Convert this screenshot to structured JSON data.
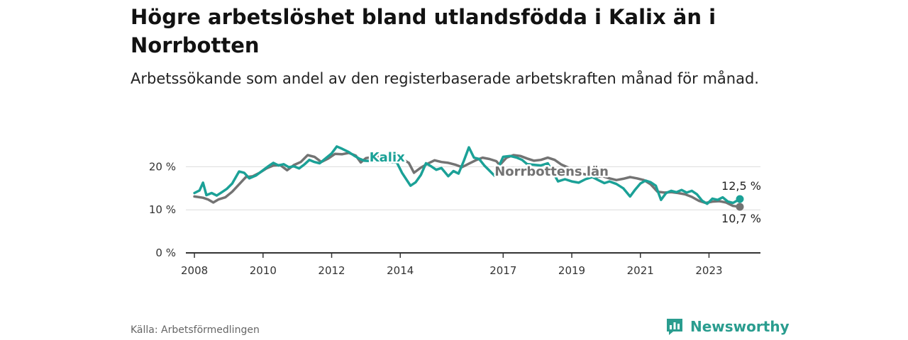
{
  "header": {
    "title": "Högre arbetslöshet bland utlandsfödda i Kalix än i Norrbotten",
    "subtitle": "Arbetssökande som andel av den registerbaserade arbetskraften månad för månad."
  },
  "footer": {
    "source": "Källa: Arbetsförmedlingen",
    "brand": "Newsworthy"
  },
  "colors": {
    "kalix": "#1ba197",
    "norrbotten": "#737373",
    "grid": "#dcdcdc",
    "axis": "#333333",
    "brand": "#2a9d8f"
  },
  "chart_data": {
    "type": "line",
    "title": "Högre arbetslöshet bland utlandsfödda i Kalix än i Norrbotten",
    "xlabel": "",
    "ylabel": "",
    "xlim": [
      2007.75,
      2024.5
    ],
    "ylim": [
      0,
      25
    ],
    "y_ticks": [
      {
        "value": 0,
        "label": "0 %"
      },
      {
        "value": 10,
        "label": "10 %"
      },
      {
        "value": 20,
        "label": "20 %"
      }
    ],
    "x_ticks": [
      {
        "value": 2008,
        "label": "2008"
      },
      {
        "value": 2010,
        "label": "2010"
      },
      {
        "value": 2012,
        "label": "2012"
      },
      {
        "value": 2014,
        "label": "2014"
      },
      {
        "value": 2017,
        "label": "2017"
      },
      {
        "value": 2019,
        "label": "2019"
      },
      {
        "value": 2021,
        "label": "2021"
      },
      {
        "value": 2023,
        "label": "2023"
      }
    ],
    "series": [
      {
        "name": "Norrbottens län",
        "label": "Norrbottens län",
        "color": "#737373",
        "end_label": "10,7 %",
        "points": [
          [
            2008.0,
            13.1
          ],
          [
            2008.25,
            12.8
          ],
          [
            2008.4,
            12.4
          ],
          [
            2008.55,
            11.7
          ],
          [
            2008.7,
            12.4
          ],
          [
            2008.9,
            12.9
          ],
          [
            2009.1,
            14.2
          ],
          [
            2009.3,
            15.9
          ],
          [
            2009.5,
            17.6
          ],
          [
            2009.7,
            17.8
          ],
          [
            2009.9,
            18.6
          ],
          [
            2010.1,
            19.6
          ],
          [
            2010.3,
            20.3
          ],
          [
            2010.5,
            20.4
          ],
          [
            2010.7,
            19.2
          ],
          [
            2010.9,
            20.4
          ],
          [
            2011.1,
            21.1
          ],
          [
            2011.3,
            22.7
          ],
          [
            2011.5,
            22.3
          ],
          [
            2011.7,
            21.1
          ],
          [
            2011.9,
            21.9
          ],
          [
            2012.1,
            23.0
          ],
          [
            2012.3,
            22.9
          ],
          [
            2012.5,
            23.2
          ],
          [
            2012.7,
            22.6
          ],
          [
            2012.85,
            21.0
          ],
          [
            2013.0,
            22.0
          ],
          [
            2013.9,
            23.1
          ],
          [
            2014.1,
            21.6
          ],
          [
            2014.25,
            20.9
          ],
          [
            2014.4,
            18.6
          ],
          [
            2014.6,
            19.8
          ],
          [
            2014.8,
            20.7
          ],
          [
            2015.0,
            21.5
          ],
          [
            2015.2,
            21.1
          ],
          [
            2015.4,
            20.9
          ],
          [
            2015.6,
            20.5
          ],
          [
            2015.8,
            19.9
          ],
          [
            2016.0,
            20.7
          ],
          [
            2016.2,
            21.5
          ],
          [
            2016.4,
            22.1
          ],
          [
            2016.6,
            21.8
          ],
          [
            2016.8,
            21.3
          ],
          [
            2016.9,
            20.4
          ],
          [
            2017.1,
            22.1
          ],
          [
            2017.3,
            22.7
          ],
          [
            2017.5,
            22.5
          ],
          [
            2017.7,
            21.9
          ],
          [
            2017.9,
            21.4
          ],
          [
            2018.1,
            21.6
          ],
          [
            2018.3,
            22.1
          ],
          [
            2018.5,
            21.6
          ],
          [
            2018.7,
            20.5
          ],
          [
            2018.9,
            19.8
          ],
          [
            2019.1,
            18.9
          ],
          [
            2019.3,
            18.4
          ],
          [
            2019.5,
            18.0
          ],
          [
            2019.7,
            17.6
          ],
          [
            2019.9,
            17.8
          ],
          [
            2020.1,
            17.3
          ],
          [
            2020.3,
            16.9
          ],
          [
            2020.5,
            17.2
          ],
          [
            2020.7,
            17.6
          ],
          [
            2020.9,
            17.3
          ],
          [
            2021.1,
            16.9
          ],
          [
            2021.3,
            15.9
          ],
          [
            2021.5,
            14.2
          ],
          [
            2021.7,
            14.0
          ],
          [
            2021.9,
            14.1
          ],
          [
            2022.1,
            13.9
          ],
          [
            2022.3,
            13.6
          ],
          [
            2022.5,
            13.0
          ],
          [
            2022.7,
            12.1
          ],
          [
            2022.9,
            11.6
          ],
          [
            2023.1,
            11.9
          ],
          [
            2023.3,
            12.0
          ],
          [
            2023.5,
            11.7
          ],
          [
            2023.7,
            10.9
          ],
          [
            2023.9,
            10.7
          ]
        ]
      },
      {
        "name": "Kalix",
        "label": "Kalix",
        "color": "#1ba197",
        "end_label": "12,5 %",
        "points": [
          [
            2008.0,
            13.9
          ],
          [
            2008.15,
            14.5
          ],
          [
            2008.25,
            16.3
          ],
          [
            2008.35,
            13.4
          ],
          [
            2008.5,
            13.9
          ],
          [
            2008.65,
            13.3
          ],
          [
            2008.8,
            14.1
          ],
          [
            2008.95,
            14.9
          ],
          [
            2009.1,
            16.1
          ],
          [
            2009.3,
            18.9
          ],
          [
            2009.45,
            18.6
          ],
          [
            2009.6,
            17.3
          ],
          [
            2009.8,
            18.0
          ],
          [
            2010.0,
            19.2
          ],
          [
            2010.15,
            20.1
          ],
          [
            2010.3,
            20.9
          ],
          [
            2010.45,
            20.3
          ],
          [
            2010.6,
            20.6
          ],
          [
            2010.75,
            19.9
          ],
          [
            2010.9,
            20.1
          ],
          [
            2011.05,
            19.6
          ],
          [
            2011.2,
            20.5
          ],
          [
            2011.35,
            21.6
          ],
          [
            2011.5,
            21.1
          ],
          [
            2011.65,
            20.8
          ],
          [
            2011.8,
            21.8
          ],
          [
            2012.0,
            23.1
          ],
          [
            2012.15,
            24.7
          ],
          [
            2012.3,
            24.2
          ],
          [
            2012.5,
            23.4
          ],
          [
            2012.65,
            22.6
          ],
          [
            2012.8,
            21.9
          ],
          [
            2012.95,
            21.4
          ],
          [
            2013.9,
            21.0
          ],
          [
            2014.05,
            18.6
          ],
          [
            2014.2,
            16.8
          ],
          [
            2014.3,
            15.6
          ],
          [
            2014.45,
            16.4
          ],
          [
            2014.6,
            18.1
          ],
          [
            2014.75,
            20.8
          ],
          [
            2014.9,
            20.1
          ],
          [
            2015.05,
            19.3
          ],
          [
            2015.2,
            19.7
          ],
          [
            2015.4,
            17.8
          ],
          [
            2015.55,
            19.0
          ],
          [
            2015.7,
            18.4
          ],
          [
            2015.85,
            21.3
          ],
          [
            2016.0,
            24.5
          ],
          [
            2016.15,
            22.1
          ],
          [
            2016.3,
            21.8
          ],
          [
            2016.45,
            20.3
          ],
          [
            2016.6,
            19.1
          ],
          [
            2016.75,
            17.9
          ],
          [
            2017.0,
            22.3
          ],
          [
            2017.2,
            22.5
          ],
          [
            2017.4,
            22.1
          ],
          [
            2017.55,
            21.6
          ],
          [
            2017.7,
            20.6
          ],
          [
            2018.1,
            20.3
          ],
          [
            2018.3,
            20.8
          ],
          [
            2018.6,
            16.6
          ],
          [
            2018.8,
            17.1
          ],
          [
            2019.0,
            16.6
          ],
          [
            2019.2,
            16.3
          ],
          [
            2019.4,
            17.1
          ],
          [
            2019.6,
            17.6
          ],
          [
            2019.8,
            16.8
          ],
          [
            2019.95,
            16.2
          ],
          [
            2020.1,
            16.6
          ],
          [
            2020.3,
            16.0
          ],
          [
            2020.5,
            15.0
          ],
          [
            2020.7,
            13.1
          ],
          [
            2020.85,
            14.7
          ],
          [
            2021.0,
            16.1
          ],
          [
            2021.15,
            16.8
          ],
          [
            2021.3,
            16.4
          ],
          [
            2021.45,
            15.6
          ],
          [
            2021.6,
            12.3
          ],
          [
            2021.75,
            13.9
          ],
          [
            2021.9,
            14.4
          ],
          [
            2022.05,
            14.1
          ],
          [
            2022.2,
            14.6
          ],
          [
            2022.35,
            14.0
          ],
          [
            2022.5,
            14.4
          ],
          [
            2022.65,
            13.6
          ],
          [
            2022.8,
            12.1
          ],
          [
            2022.95,
            11.4
          ],
          [
            2023.1,
            12.6
          ],
          [
            2023.25,
            12.3
          ],
          [
            2023.4,
            12.9
          ],
          [
            2023.55,
            11.9
          ],
          [
            2023.7,
            11.6
          ],
          [
            2023.9,
            12.5
          ]
        ]
      }
    ]
  }
}
